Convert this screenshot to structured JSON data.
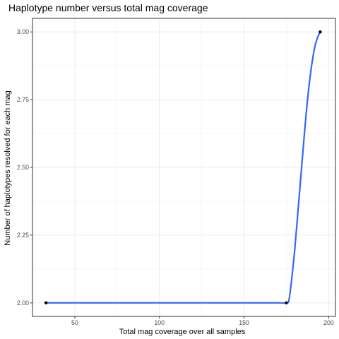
{
  "chart_data": {
    "type": "scatter",
    "title": "Haplotype number versus total mag coverage",
    "xlabel": "Total mag coverage over all samples",
    "ylabel": "Number of haplotypes resolved for each mag",
    "xlim": [
      25,
      204
    ],
    "ylim": [
      1.95,
      3.05
    ],
    "x_ticks": [
      50,
      100,
      150,
      200
    ],
    "y_ticks": [
      2.0,
      2.25,
      2.5,
      2.75,
      3.0
    ],
    "x_tick_labels": [
      "50",
      "100",
      "150",
      "200"
    ],
    "y_tick_labels": [
      "2.00",
      "2.25",
      "2.50",
      "2.75",
      "3.00"
    ],
    "grid": true,
    "points": [
      {
        "x": 33,
        "y": 2.0
      },
      {
        "x": 175,
        "y": 2.0
      },
      {
        "x": 195,
        "y": 3.0
      }
    ],
    "smooth_line": {
      "color": "#3366ff",
      "x": [
        33,
        100,
        150,
        170,
        175,
        176.5,
        178,
        180,
        182,
        184,
        186,
        188,
        190,
        192,
        193.5,
        195
      ],
      "y": [
        2.0,
        2.0,
        2.0,
        2.0,
        2.0,
        2.01,
        2.08,
        2.2,
        2.35,
        2.5,
        2.65,
        2.78,
        2.88,
        2.95,
        2.98,
        3.0
      ]
    },
    "point_color": "#000000",
    "panel_border_color": "#333333",
    "grid_color": "#ebebeb"
  }
}
